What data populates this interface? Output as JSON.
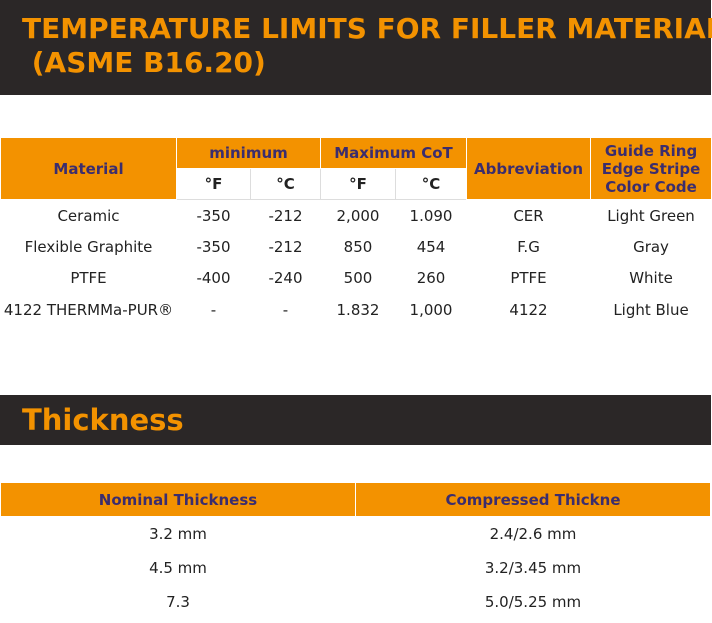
{
  "header": {
    "title_lines": [
      "TEMPERATURE LIMITS FOR FILLER MATERIAL",
      " (ASME B16.20)"
    ]
  },
  "table": {
    "headers": {
      "material": "Material",
      "minimum": "minimum",
      "maximum": "Maximum CoT",
      "abbreviation": "Abbreviation",
      "color_code": [
        "Guide Ring",
        "Edge Stripe",
        "Color Code"
      ],
      "units": [
        "°F",
        "°C",
        "°F",
        "°C"
      ]
    },
    "rows": [
      [
        "Ceramic",
        "-350",
        "-212",
        "2,000",
        "1.090",
        "CER",
        "Light Green"
      ],
      [
        "Flexible Graphite",
        "-350",
        "-212",
        "850",
        "454",
        "F.G",
        "Gray"
      ],
      [
        "PTFE",
        "-400",
        "-240",
        "500",
        "260",
        "PTFE",
        "White"
      ],
      [
        "4122 THERMMa-PUR®",
        "-",
        "-",
        "1.832",
        "1,000",
        "4122",
        "Light Blue"
      ]
    ]
  },
  "section": {
    "title": "Thickness"
  },
  "thickness_table": {
    "headers": [
      "Nominal Thickness",
      "Compressed Thickne"
    ],
    "rows": [
      [
        "3.2 mm",
        "2.4/2.6 mm"
      ],
      [
        "4.5 mm",
        "3.2/3.45 mm"
      ],
      [
        "7.3",
        "5.0/5.25 mm"
      ]
    ]
  }
}
